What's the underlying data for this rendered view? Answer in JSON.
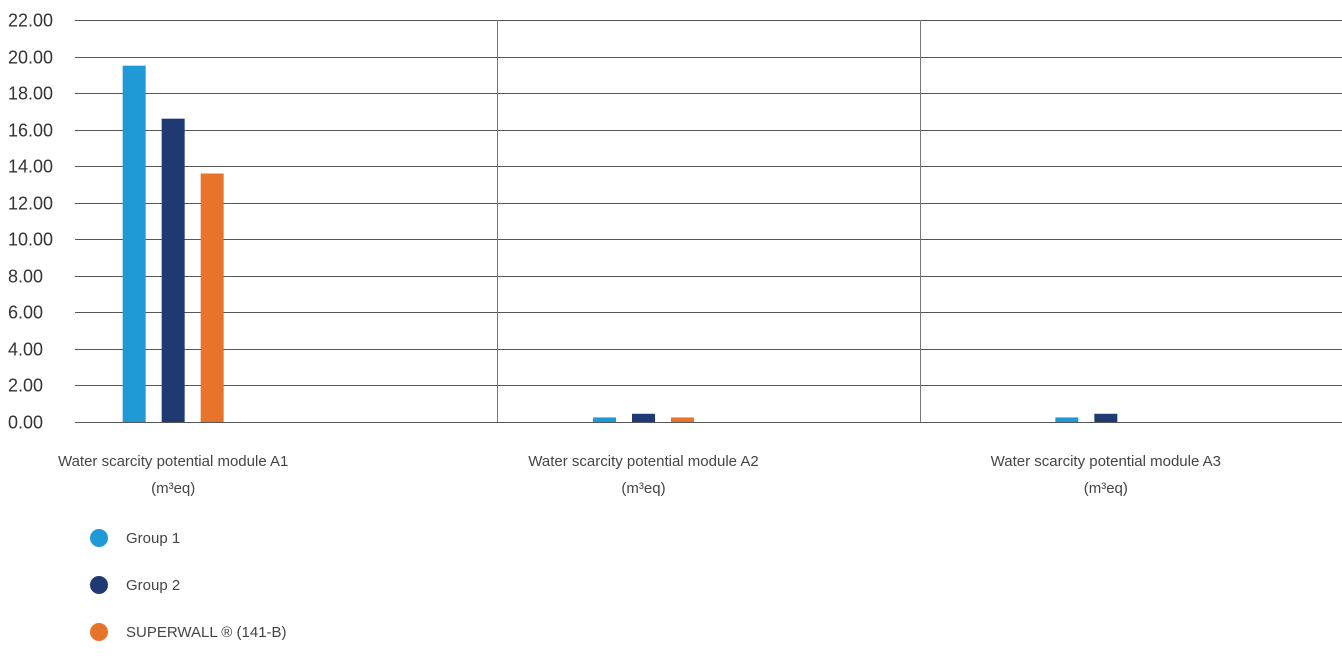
{
  "chart_data": {
    "type": "bar",
    "categories": [
      "Water scarcity potential module A1",
      "Water scarcity potential module A2",
      "Water scarcity potential module A3"
    ],
    "category_unit": "(m³eq)",
    "ylim": [
      0,
      22
    ],
    "yticks": [
      "0.00",
      "2.00",
      "4.00",
      "6.00",
      "8.00",
      "10.00",
      "12.00",
      "14.00",
      "16.00",
      "18.00",
      "20.00",
      "22.00"
    ],
    "grid": true,
    "legend_position": "bottom-left",
    "series": [
      {
        "name": "Group 1",
        "color": "#1f9ad6",
        "values": [
          19.5,
          0.25,
          0.25
        ]
      },
      {
        "name": "Group 2",
        "color": "#1f3a73",
        "values": [
          16.6,
          0.45,
          0.45
        ]
      },
      {
        "name": "SUPERWALL ® (141-B)",
        "color": "#e8732a",
        "values": [
          13.6,
          0.25,
          0
        ]
      }
    ]
  }
}
